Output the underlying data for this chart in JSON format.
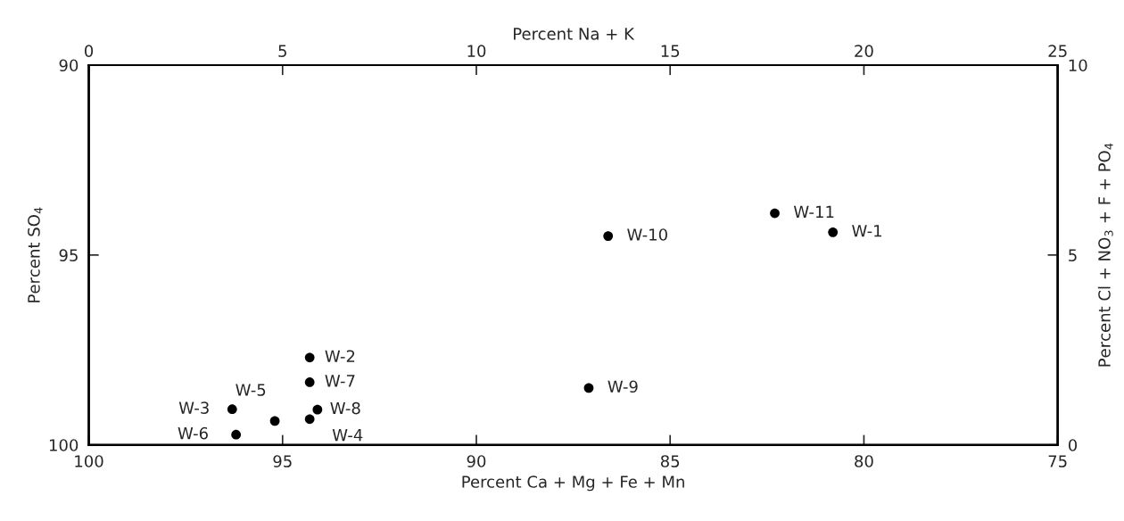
{
  "chart_data": {
    "type": "scatter",
    "xlabel": "Percent Ca + Mg + Fe + Mn",
    "ylabel": "Percent SO$_{4}$",
    "x2label": "Percent Na + K",
    "y2label": "Percent Cl + NO$_{3}$ + F + PO$_{4}$",
    "xlim": [
      100,
      75
    ],
    "xticks": [
      100,
      95,
      90,
      85,
      80,
      75
    ],
    "ylim": [
      100,
      90
    ],
    "yticks": [
      100,
      95,
      90
    ],
    "x2lim": [
      0,
      25
    ],
    "x2ticks": [
      0,
      5,
      10,
      15,
      20,
      25
    ],
    "y2lim": [
      0,
      10
    ],
    "y2ticks": [
      0,
      5,
      10
    ],
    "marker": "circle",
    "grid": false,
    "legend": false,
    "series": [
      {
        "color": "#000000",
        "x": [
          80.8,
          94.3,
          96.3,
          94.3,
          95.2,
          96.2,
          94.3,
          94.1,
          87.1,
          86.6,
          82.3
        ],
        "values": [
          94.4,
          97.7,
          99.06,
          99.32,
          99.37,
          99.73,
          98.35,
          99.07,
          98.5,
          94.5,
          93.9
        ]
      }
    ],
    "annotations": [
      {
        "text": "W-1",
        "x": 80.8,
        "y": 94.4
      },
      {
        "text": "W-2",
        "x": 94.3,
        "y": 97.7
      },
      {
        "text": "W-3",
        "x": 96.3,
        "y": 99.06
      },
      {
        "text": "W-4",
        "x": 94.3,
        "y": 99.32
      },
      {
        "text": "W-5",
        "x": 95.2,
        "y": 99.37
      },
      {
        "text": "W-6",
        "x": 96.2,
        "y": 99.73
      },
      {
        "text": "W-7",
        "x": 94.3,
        "y": 98.35
      },
      {
        "text": "W-8",
        "x": 94.1,
        "y": 99.07
      },
      {
        "text": "W-9",
        "x": 87.1,
        "y": 98.5
      },
      {
        "text": "W-10",
        "x": 86.6,
        "y": 94.5
      },
      {
        "text": "W-11",
        "x": 82.3,
        "y": 93.9
      }
    ]
  }
}
